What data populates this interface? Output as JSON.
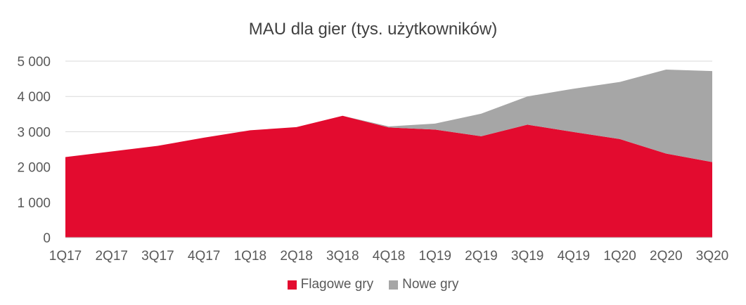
{
  "chart_data": {
    "type": "area",
    "stacked": true,
    "title": "MAU dla gier (tys. użytkowników)",
    "xlabel": "",
    "ylabel": "",
    "ylim": [
      0,
      5000
    ],
    "yticks": [
      0,
      1000,
      2000,
      3000,
      4000,
      5000
    ],
    "ytick_labels": [
      "0",
      "1 000",
      "2 000",
      "3 000",
      "4 000",
      "5 000"
    ],
    "grid": true,
    "legend": "bottom",
    "categories": [
      "1Q17",
      "2Q17",
      "3Q17",
      "4Q17",
      "1Q18",
      "2Q18",
      "3Q18",
      "4Q18",
      "1Q19",
      "2Q19",
      "3Q19",
      "4Q19",
      "1Q20",
      "2Q20",
      "3Q20"
    ],
    "series": [
      {
        "name": "Flagowe gry",
        "color": "#e30b2f",
        "values": [
          2280,
          2440,
          2600,
          2830,
          3040,
          3130,
          3450,
          3120,
          3060,
          2870,
          3200,
          2990,
          2790,
          2380,
          2140
        ]
      },
      {
        "name": "Nowe gry",
        "color": "#a6a6a6",
        "values": [
          0,
          0,
          0,
          0,
          0,
          0,
          0,
          30,
          170,
          640,
          800,
          1230,
          1620,
          2380,
          2580
        ]
      }
    ]
  }
}
